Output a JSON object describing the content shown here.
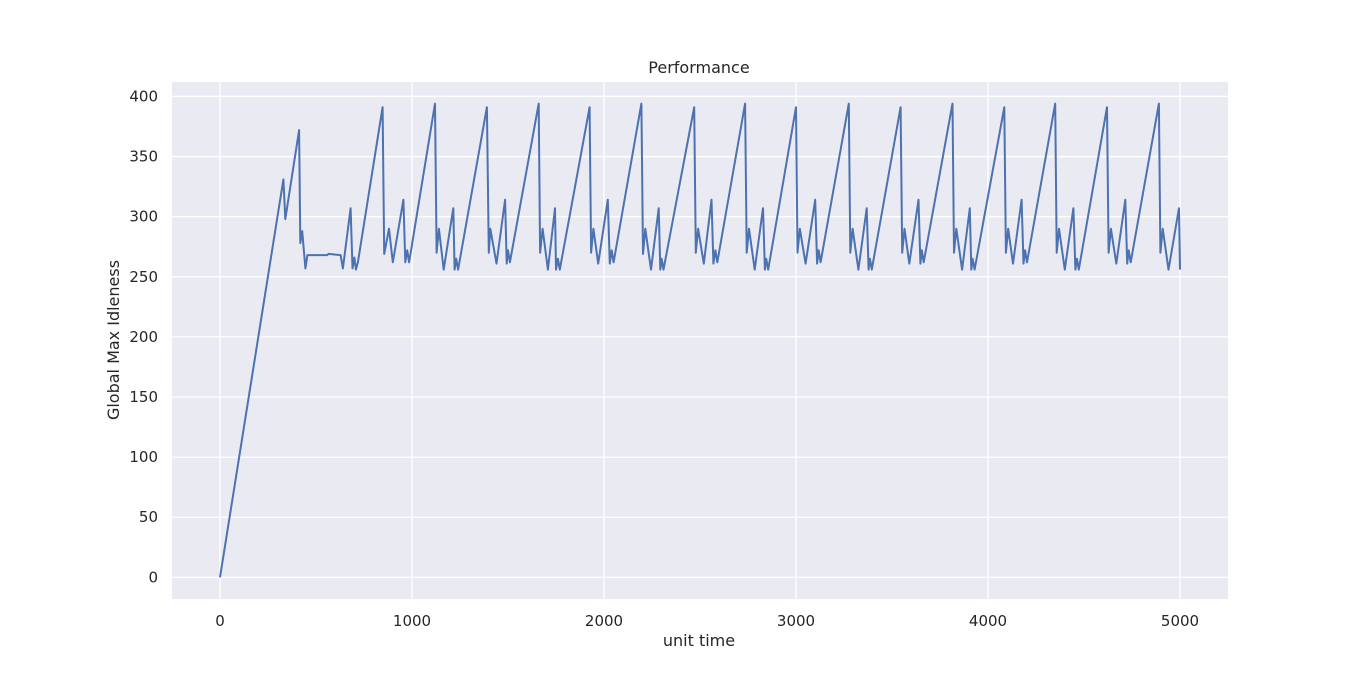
{
  "chart_data": {
    "type": "line",
    "title": "Performance",
    "xlabel": "unit time",
    "ylabel": "Global Max Idleness",
    "xlim": [
      -250,
      5250
    ],
    "ylim": [
      -18,
      412
    ],
    "xticks": [
      0,
      1000,
      2000,
      3000,
      4000,
      5000
    ],
    "yticks": [
      0,
      50,
      100,
      150,
      200,
      250,
      300,
      350,
      400
    ],
    "grid": true,
    "legend": "none",
    "colors": {
      "background": "#eaeaf2",
      "grid": "#ffffff",
      "line": "#4c72b0"
    },
    "series": [
      {
        "x": [
          0,
          330,
          340,
          412,
          418,
          428,
          445,
          455,
          558,
          565,
          628,
          640,
          680,
          690,
          700,
          708,
          718,
          847,
          855,
          880,
          900,
          955,
          965,
          975,
          985,
          1120,
          1128,
          1140,
          1165,
          1215,
          1222,
          1230,
          1240,
          1390,
          1400,
          1408,
          1440,
          1485,
          1493,
          1500,
          1510,
          1660,
          1667,
          1680,
          1708,
          1745,
          1750,
          1760,
          1770,
          1925,
          1933,
          1945,
          1970,
          2020,
          2030,
          2040,
          2050,
          2195,
          2203,
          2215,
          2245,
          2285,
          2293,
          2300,
          2310,
          2470,
          2478,
          2490,
          2520,
          2560,
          2570,
          2580,
          2590,
          2735,
          2743,
          2755,
          2785,
          2828,
          2838,
          2845,
          2855,
          3000,
          3008,
          3020,
          3050,
          3100,
          3110,
          3118,
          3128,
          3275,
          3283,
          3295,
          3325,
          3368,
          3378,
          3385,
          3395,
          3545,
          3553,
          3565,
          3590,
          3638,
          3648,
          3655,
          3665,
          3815,
          3823,
          3835,
          3865,
          3905,
          3913,
          3920,
          3930,
          4085,
          4093,
          4105,
          4130,
          4175,
          4185,
          4193,
          4203,
          4350,
          4358,
          4370,
          4400,
          4445,
          4455,
          4463,
          4473,
          4620,
          4628,
          4640,
          4668,
          4715,
          4725,
          4733,
          4743,
          4890,
          4898,
          4910,
          4940,
          4995,
          5000
        ],
        "values": [
          0,
          331,
          298,
          372,
          278,
          288,
          257,
          268,
          268,
          269,
          268,
          257,
          307,
          257,
          266,
          256,
          262,
          391,
          269,
          290,
          262,
          314,
          262,
          272,
          262,
          394,
          270,
          290,
          256,
          307,
          256,
          265,
          256,
          391,
          270,
          290,
          261,
          314,
          261,
          272,
          262,
          394,
          270,
          290,
          256,
          307,
          256,
          265,
          256,
          391,
          270,
          290,
          261,
          314,
          261,
          272,
          262,
          394,
          269,
          290,
          256,
          307,
          256,
          265,
          256,
          391,
          270,
          290,
          261,
          314,
          261,
          272,
          262,
          394,
          270,
          290,
          256,
          307,
          256,
          265,
          256,
          391,
          270,
          290,
          261,
          314,
          261,
          272,
          262,
          394,
          270,
          290,
          256,
          307,
          256,
          265,
          256,
          391,
          270,
          290,
          261,
          314,
          261,
          272,
          262,
          394,
          270,
          290,
          256,
          307,
          256,
          265,
          256,
          391,
          270,
          290,
          261,
          314,
          261,
          272,
          262,
          394,
          270,
          290,
          256,
          307,
          256,
          265,
          256,
          391,
          270,
          290,
          261,
          314,
          261,
          272,
          262,
          394,
          270,
          290,
          256,
          307,
          256
        ]
      }
    ]
  }
}
